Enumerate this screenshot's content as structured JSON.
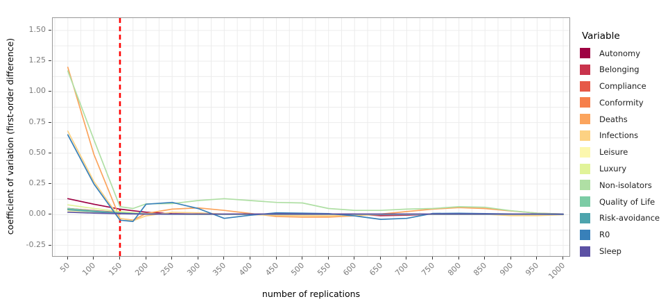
{
  "chart_data": {
    "type": "line",
    "title": "",
    "xlabel": "number of replications",
    "ylabel": "coefficient of variation (first-order difference)",
    "legend_title": "Variable",
    "legend_position": "right",
    "grid": {
      "on": true,
      "x_minor_step": 25,
      "y_minor_step": 0.125,
      "color": "#ececec"
    },
    "xlim": [
      21,
      1012
    ],
    "ylim": [
      -0.337,
      1.601
    ],
    "x_tick_labels": [
      "50",
      "100",
      "150",
      "200",
      "250",
      "300",
      "350",
      "400",
      "450",
      "500",
      "550",
      "600",
      "650",
      "700",
      "750",
      "800",
      "850",
      "900",
      "950",
      "1000"
    ],
    "y_tick_labels": [
      "1.50",
      "1.25",
      "1.00",
      "0.75",
      "0.50",
      "0.25",
      "0.00",
      "-0.25"
    ],
    "reference_line": {
      "x": 150,
      "color": "#ff0000",
      "style": "dashed",
      "orientation": "vertical"
    },
    "x": [
      50,
      100,
      150,
      175,
      200,
      250,
      300,
      350,
      400,
      450,
      500,
      550,
      600,
      650,
      700,
      750,
      800,
      850,
      900,
      950,
      1000
    ],
    "series": [
      {
        "name": "Autonomy",
        "color": "#9E0142",
        "values": [
          0.13,
          0.085,
          0.045,
          0.032,
          0.02,
          0.008,
          0.005,
          0.004,
          0.004,
          0.004,
          0.004,
          0.004,
          0.004,
          -0.008,
          -0.004,
          0.004,
          0.004,
          0.004,
          0.004,
          0.004,
          0.003
        ]
      },
      {
        "name": "Belonging",
        "color": "#C9334C",
        "values": [
          0.05,
          0.033,
          0.018,
          0.013,
          0.009,
          0.005,
          0.004,
          0.004,
          0.004,
          0.004,
          0.004,
          0.004,
          0.004,
          0.004,
          0.004,
          0.004,
          0.004,
          0.004,
          0.004,
          0.004,
          0.003
        ]
      },
      {
        "name": "Compliance",
        "color": "#E65948",
        "values": [
          0.05,
          0.03,
          0.016,
          0.011,
          0.007,
          0.004,
          0.003,
          0.003,
          0.003,
          0.003,
          0.003,
          0.003,
          0.003,
          0.003,
          0.003,
          0.003,
          0.003,
          0.003,
          0.003,
          0.003,
          0.003
        ]
      },
      {
        "name": "Conformity",
        "color": "#F67F4B",
        "values": [
          0.04,
          0.026,
          0.013,
          0.009,
          0.006,
          0.004,
          0.003,
          0.003,
          0.003,
          0.003,
          0.003,
          0.003,
          0.003,
          0.003,
          0.003,
          0.003,
          0.003,
          0.003,
          0.003,
          0.003,
          0.002
        ]
      },
      {
        "name": "Deaths",
        "color": "#FBA45D",
        "values": [
          1.2,
          0.49,
          -0.03,
          -0.045,
          0.01,
          0.045,
          0.055,
          0.035,
          0.01,
          -0.015,
          -0.02,
          -0.02,
          -0.01,
          0.005,
          0.025,
          0.045,
          0.058,
          0.05,
          0.03,
          0.013,
          0.005
        ]
      },
      {
        "name": "Infections",
        "color": "#FDD283",
        "values": [
          0.68,
          0.27,
          -0.03,
          -0.05,
          -0.01,
          0.02,
          0.015,
          0.005,
          0.0,
          -0.005,
          -0.008,
          -0.01,
          -0.005,
          0.0,
          0.0,
          0.005,
          0.005,
          0.003,
          -0.008,
          -0.008,
          0.0
        ]
      },
      {
        "name": "Leisure",
        "color": "#FCF7AD",
        "values": [
          0.03,
          0.02,
          0.01,
          0.007,
          0.005,
          0.003,
          0.002,
          0.002,
          0.002,
          0.002,
          0.002,
          0.002,
          0.002,
          0.002,
          0.002,
          0.002,
          0.002,
          0.002,
          0.002,
          0.002,
          0.002
        ]
      },
      {
        "name": "Luxury",
        "color": "#E1F399",
        "values": [
          0.08,
          0.05,
          0.025,
          0.016,
          0.009,
          0.005,
          0.003,
          0.003,
          0.003,
          0.003,
          0.003,
          0.003,
          0.003,
          0.003,
          0.003,
          0.003,
          0.003,
          0.003,
          0.003,
          0.003,
          0.002
        ]
      },
      {
        "name": "Non-isolators",
        "color": "#AFDFA4",
        "values": [
          1.17,
          0.61,
          0.065,
          0.05,
          0.088,
          0.09,
          0.115,
          0.13,
          0.115,
          0.1,
          0.095,
          0.05,
          0.035,
          0.035,
          0.045,
          0.05,
          0.065,
          0.06,
          0.032,
          0.012,
          0.006
        ]
      },
      {
        "name": "Quality of Life",
        "color": "#7CCCA5",
        "values": [
          0.05,
          0.03,
          0.015,
          0.01,
          0.006,
          0.004,
          0.003,
          0.003,
          0.003,
          0.003,
          0.003,
          0.003,
          0.003,
          0.003,
          0.003,
          0.003,
          0.003,
          0.003,
          0.003,
          0.003,
          0.002
        ]
      },
      {
        "name": "Risk-avoidance",
        "color": "#4DA4AD",
        "values": [
          0.04,
          0.025,
          0.012,
          0.008,
          0.005,
          0.003,
          0.003,
          0.003,
          0.003,
          0.003,
          0.003,
          0.003,
          0.003,
          0.003,
          0.003,
          0.003,
          0.003,
          0.003,
          0.003,
          0.003,
          0.002
        ]
      },
      {
        "name": "R0",
        "color": "#3880B9",
        "values": [
          0.65,
          0.25,
          -0.045,
          -0.055,
          0.085,
          0.1,
          0.05,
          -0.03,
          -0.005,
          0.015,
          0.012,
          0.008,
          -0.01,
          -0.038,
          -0.03,
          0.01,
          0.011,
          0.008,
          0.006,
          0.005,
          0.004
        ]
      },
      {
        "name": "Sleep",
        "color": "#5C51A4",
        "values": [
          0.02,
          0.013,
          0.008,
          0.006,
          0.005,
          0.005,
          0.005,
          0.005,
          0.005,
          0.005,
          0.005,
          0.005,
          0.005,
          0.005,
          0.005,
          0.005,
          0.005,
          0.005,
          0.005,
          0.005,
          0.004
        ]
      }
    ],
    "style": {
      "panel_border": "#979797",
      "tick_color": "#333333",
      "tick_label_color": "#7b7b7b",
      "background": "#ffffff"
    }
  }
}
